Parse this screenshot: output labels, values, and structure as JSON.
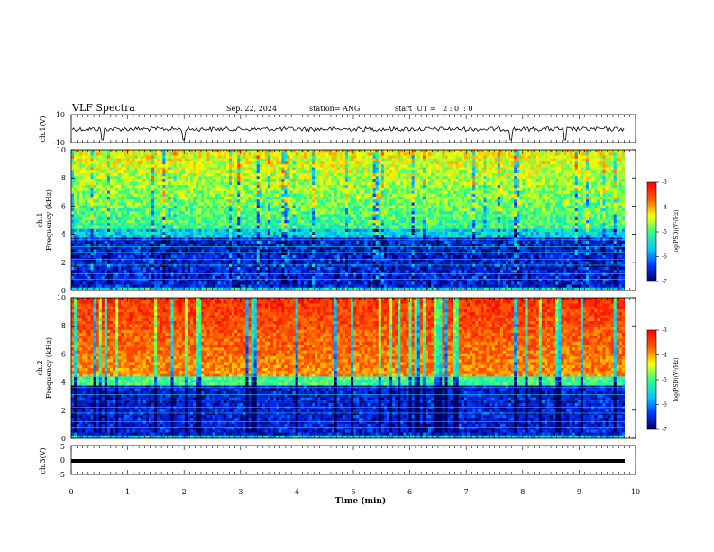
{
  "header": {
    "title": "VLF Spectra",
    "date": "Sep. 22, 2024",
    "station": "station= ANG",
    "start_ut": "start  UT =   2 : 0  : 0"
  },
  "chart_data": [
    {
      "type": "line",
      "panel": "ch1-waveform",
      "ylabel": "ch.1(V)",
      "ylim": [
        -10,
        10
      ],
      "yticks": [
        "10",
        "-10"
      ],
      "xlim": [
        0,
        10
      ],
      "description_values": {
        "baseline": 0,
        "spike_times_min": [
          0.55,
          2.0,
          7.8,
          8.75
        ]
      }
    },
    {
      "type": "heatmap",
      "panel": "ch1-spectrogram",
      "ylabel_line1": "ch.1",
      "ylabel_line2": "Frequency (kHz)",
      "ylim": [
        0,
        10
      ],
      "yticks": [
        "0",
        "2",
        "4",
        "6",
        "8",
        "10"
      ],
      "xlim": [
        0,
        9.8
      ],
      "colorbar": {
        "label": "log(PSD)(V²/Hz)",
        "range": [
          -7,
          -3
        ],
        "ticks": [
          "-3",
          "-4",
          "-5",
          "-6",
          "-7"
        ]
      }
    },
    {
      "type": "heatmap",
      "panel": "ch2-spectrogram",
      "ylabel_line1": "ch.2",
      "ylabel_line2": "Frequency (kHz)",
      "ylim": [
        0,
        10
      ],
      "yticks": [
        "0",
        "2",
        "4",
        "6",
        "8",
        "10"
      ],
      "xlim": [
        0,
        9.8
      ],
      "colorbar": {
        "label": "log(PSD)(V²/Hz)",
        "range": [
          -7,
          -3
        ],
        "ticks": [
          "-3",
          "-4",
          "-5",
          "-6",
          "-7"
        ]
      }
    },
    {
      "type": "line",
      "panel": "ch3-waveform",
      "ylabel": "ch.3(V)",
      "ylim": [
        -5,
        5
      ],
      "yticks": [
        "5",
        "0",
        "-5"
      ],
      "xlim": [
        0,
        10
      ],
      "description_values": {
        "constant_level": -1.5
      }
    }
  ],
  "xaxis": {
    "label": "Time (min)",
    "ticks": [
      "0",
      "1",
      "2",
      "3",
      "4",
      "5",
      "6",
      "7",
      "8",
      "9",
      "10"
    ]
  },
  "colors": {
    "waveform": "#000000",
    "colormap": [
      "#000060",
      "#0030ff",
      "#00c8ff",
      "#30ff80",
      "#ffff00",
      "#ff6000",
      "#ff0000"
    ]
  }
}
